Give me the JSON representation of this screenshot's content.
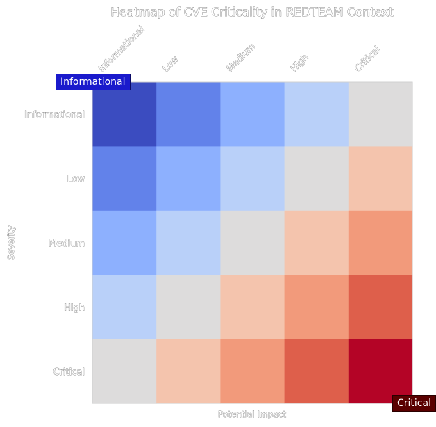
{
  "chart_data": {
    "type": "heatmap",
    "title": "Heatmap of CVE Criticality in REDTEAM Context",
    "xlabel": "Potential Impact",
    "ylabel": "Severity",
    "x_categories": [
      "Informational",
      "Low",
      "Medium",
      "High",
      "Critical"
    ],
    "y_categories": [
      "Informational",
      "Low",
      "Medium",
      "High",
      "Critical"
    ],
    "values": [
      [
        0,
        1,
        2,
        3,
        4
      ],
      [
        1,
        2,
        3,
        4,
        5
      ],
      [
        2,
        3,
        4,
        5,
        6
      ],
      [
        3,
        4,
        5,
        6,
        7
      ],
      [
        4,
        5,
        6,
        7,
        8
      ]
    ],
    "colormap": "coolwarm",
    "colors": [
      "#3b4cc0",
      "#6282ea",
      "#8db0fe",
      "#b9d0f9",
      "#dddcdc",
      "#f4c4ad",
      "#f29a7b",
      "#de5f4b",
      "#b40426"
    ],
    "colorbar_min_label": "Informational",
    "colorbar_max_label": "Critical",
    "colorbar_min_color": "#1a1acc",
    "colorbar_max_color": "#5a0000"
  }
}
